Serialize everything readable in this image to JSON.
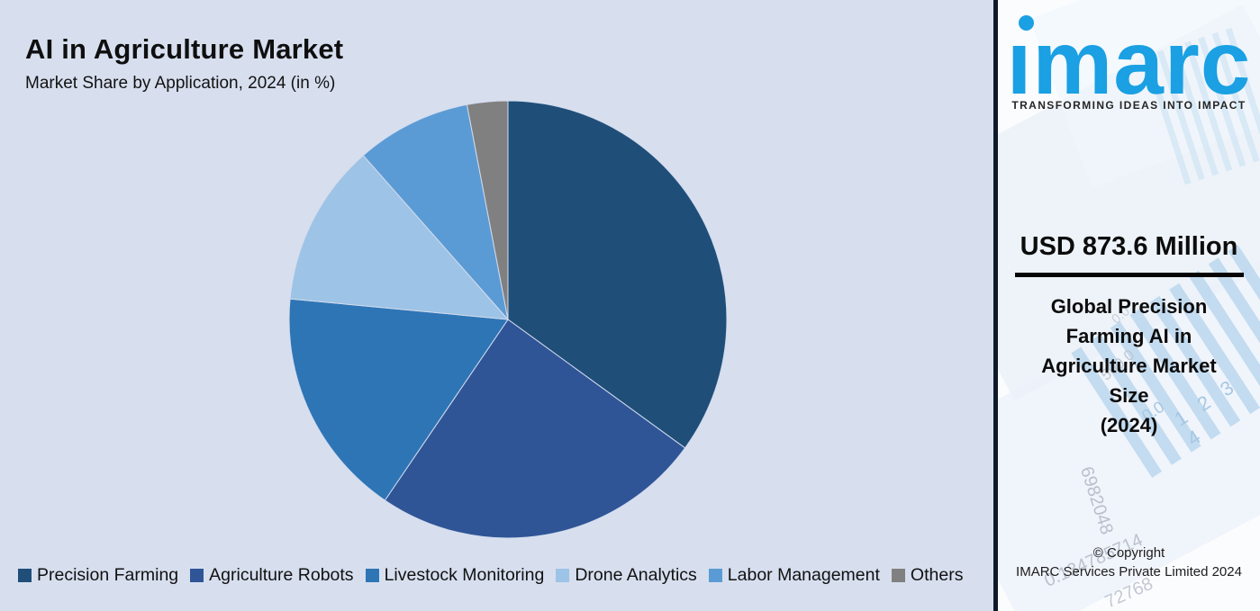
{
  "header": {
    "title": "AI in Agriculture Market",
    "subtitle": "Market Share by Application, 2024 (in %)"
  },
  "chart_data": {
    "type": "pie",
    "title": "AI in Agriculture Market",
    "subtitle": "Market Share by Application, 2024 (in %)",
    "unit": "%",
    "start_angle_deg": 0,
    "direction": "clockwise",
    "legend_position": "bottom",
    "data_labels_shown": false,
    "segments": [
      {
        "label": "Precision Farming",
        "value": 35,
        "color": "#1f4e79"
      },
      {
        "label": "Agriculture Robots",
        "value": 24.5,
        "color": "#2f5597"
      },
      {
        "label": "Livestock Monitoring",
        "value": 17,
        "color": "#2e75b6"
      },
      {
        "label": "Drone Analytics",
        "value": 12,
        "color": "#9dc3e6"
      },
      {
        "label": "Labor Management",
        "value": 8.5,
        "color": "#5b9bd5"
      },
      {
        "label": "Others",
        "value": 3,
        "color": "#808080"
      }
    ]
  },
  "sidebar": {
    "logo_text": "imarc",
    "tagline": "TRANSFORMING IDEAS INTO IMPACT",
    "market_value": "USD 873.6 Million",
    "market_label": "Global Precision\nFarming AI in\nAgriculture Market\nSize\n(2024)",
    "copyright": "© Copyright\nIMARC Services Private Limited 2024",
    "accent_color": "#1aa0e3",
    "watermarks": [
      "6982048",
      "0.134785714",
      "72768",
      "1 2 3 4",
      "0.0",
      "500.0",
      "0.0"
    ]
  },
  "colors": {
    "background": "#d7dfef",
    "sidebar_background": "#fbfcfe",
    "sidebar_border": "#0e1a2b",
    "text": "#0f0f0f"
  }
}
